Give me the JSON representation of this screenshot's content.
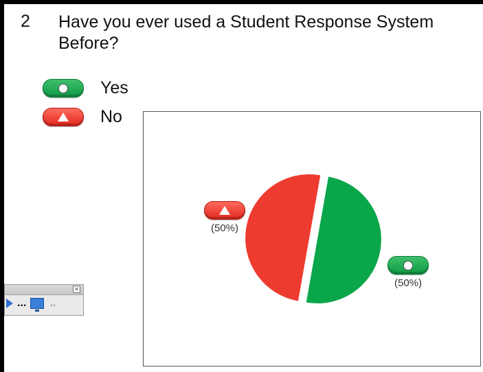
{
  "question": {
    "number": "2",
    "text": "Have you ever used a Student Response System Before?"
  },
  "legend": [
    {
      "label": "Yes",
      "color": "#0aa64a",
      "icon": "circle-icon"
    },
    {
      "label": "No",
      "color": "#ee3b2f",
      "icon": "triangle-icon"
    }
  ],
  "chart_data": {
    "type": "pie",
    "title": "",
    "categories": [
      "Yes",
      "No"
    ],
    "values": [
      50,
      50
    ],
    "colors": [
      "#0aa64a",
      "#ee3b2f"
    ],
    "data_labels": [
      "(50%)",
      "(50%)"
    ],
    "legend_position": "top-left"
  },
  "toolbar": {
    "close_glyph": "×",
    "dots_glyph": "...",
    "resize_glyph": "↔"
  }
}
